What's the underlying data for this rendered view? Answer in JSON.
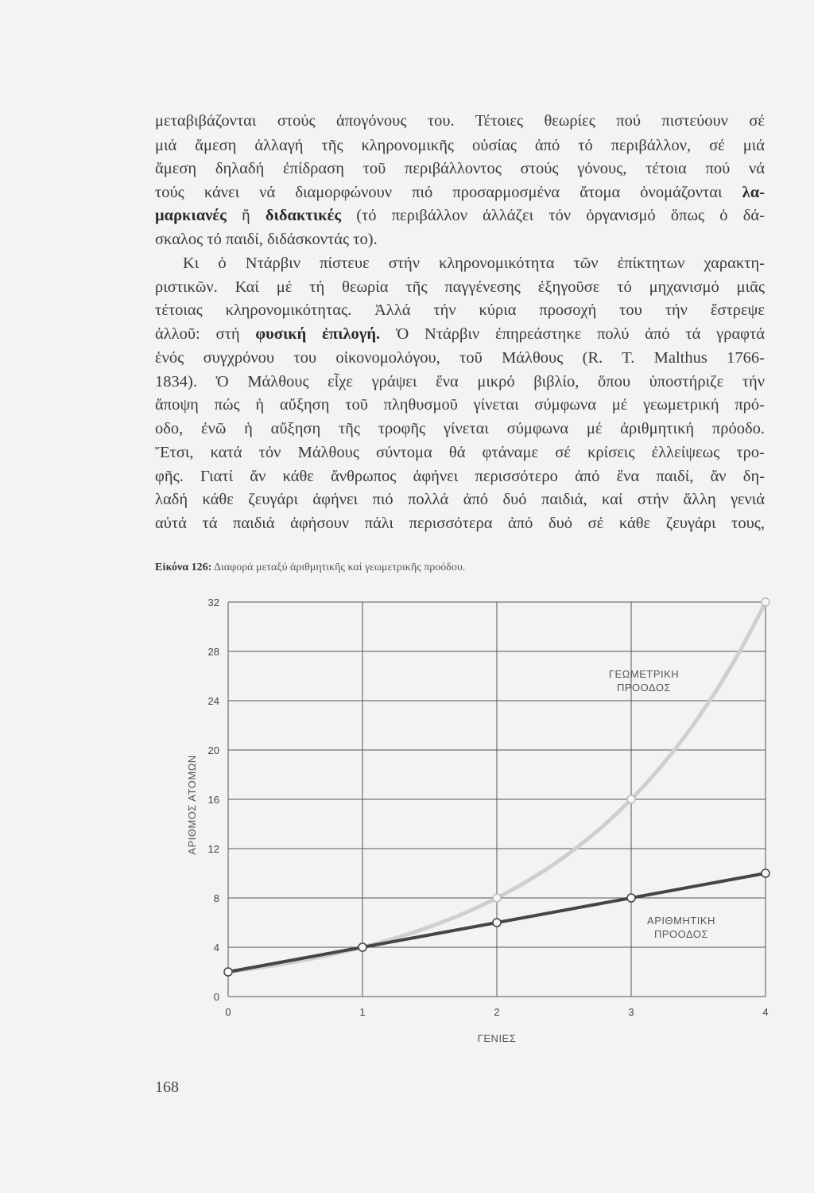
{
  "body_lines": [
    [
      {
        "t": "μεταβιβάζονται στούς ἀπογόνους του. Τέτοιες θεωρίες πού πιστεύουν σέ"
      }
    ],
    [
      {
        "t": "μιά ἄμεση ἀλλαγή τῆς κληρονομικῆς οὐσίας ἀπό τό περιβάλλον, σέ μιά"
      }
    ],
    [
      {
        "t": "ἄμεση δηλαδή ἐπίδραση τοῦ περιβάλλοντος στούς γόνους, τέτοια πού νά"
      }
    ],
    [
      {
        "t": "τούς κάνει νά διαμορφώνουν πιό προσαρμοσμένα ἄτομα ὀνομάζονται "
      },
      {
        "t": "λα-",
        "b": true
      }
    ],
    [
      {
        "t": "μαρκιανές",
        "b": true
      },
      {
        "t": " ἤ "
      },
      {
        "t": "διδακτικές",
        "b": true
      },
      {
        "t": " (τό περιβάλλον ἀλλάζει τόν ὀργανισμό ὅπως ὁ δά-"
      }
    ],
    [
      {
        "t": "σκαλος τό παιδί, διδάσκοντάς το)."
      }
    ],
    [
      {
        "t": "Κι ὁ Ντάρβιν πίστευε στήν κληρονομικότητα τῶν ἐπίκτητων χαρακτη-"
      }
    ],
    [
      {
        "t": "ριστικῶν. Καί μέ τή θεωρία τῆς παγγένεσης ἐξηγοῦσε τό μηχανισμό μιᾶς"
      }
    ],
    [
      {
        "t": "τέτοιας κληρονομικότητας. Ἀλλά τήν κύρια προσοχή του τήν ἔστρεψε"
      }
    ],
    [
      {
        "t": "ἀλλοῦ: στή "
      },
      {
        "t": "φυσική ἐπιλογή.",
        "b": true
      },
      {
        "t": " Ὁ Ντάρβιν ἐπηρεάστηκε πολύ ἀπό τά γραφτά"
      }
    ],
    [
      {
        "t": "ἑνός συγχρόνου του οἰκονομολόγου, τοῦ Μάλθους (R. T. Malthus 1766-"
      }
    ],
    [
      {
        "t": "1834). Ὁ Μάλθους εἶχε γράψει ἕνα μικρό βιβλίο, ὅπου ὑποστήριζε τήν"
      }
    ],
    [
      {
        "t": "ἄποψη πώς ἡ αὔξηση τοῦ πληθυσμοῦ γίνεται σύμφωνα μέ γεωμετρική πρό-"
      }
    ],
    [
      {
        "t": "οδο, ἐνῶ ἡ αὔξηση τῆς τροφῆς γίνεται σύμφωνα μέ ἀριθμητική πρόοδο."
      }
    ],
    [
      {
        "t": "Ἔτσι, κατά τόν Μάλθους σύντομα θά φτάναμε σέ κρίσεις ἐλλείψεως τρο-"
      }
    ],
    [
      {
        "t": "φῆς. Γιατί ἄν κάθε ἄνθρωπος ἀφήνει περισσότερο ἀπό ἕνα παιδί, ἄν δη-"
      }
    ],
    [
      {
        "t": "λαδή κάθε ζευγάρι ἀφήνει πιό πολλά ἀπό δυό παιδιά, καί στήν ἄλλη γενιά"
      }
    ],
    [
      {
        "t": "αὐτά τά παιδιά ἀφήσουν πάλι περισσότερα ἀπό δυό σέ κάθε ζευγάρι τους,"
      }
    ]
  ],
  "caption": {
    "label": "Εἰκόνα 126:",
    "text": " Διαφορά μεταξύ ἀριθμητικῆς καί γεωμετρικῆς προόδου."
  },
  "page_number": "168",
  "chart_data": {
    "type": "line",
    "x": [
      0,
      1,
      2,
      3,
      4
    ],
    "xlabel": "ΓΕΝΙΕΣ",
    "ylabel": "ΑΡΙΘΜΟΣ ΑΤΟΜΩΝ",
    "xlim": [
      0,
      4
    ],
    "ylim": [
      0,
      32
    ],
    "xticks": [
      "0",
      "1",
      "2",
      "3",
      "4"
    ],
    "yticks": [
      "0",
      "4",
      "8",
      "12",
      "16",
      "20",
      "24",
      "28",
      "32"
    ],
    "grid": true,
    "series": [
      {
        "name_lines": [
          "ΓΕΩΜΕΤΡΙΚΗ",
          "ΠΡΟΟΔΟΣ"
        ],
        "values": [
          2,
          4,
          8,
          16,
          32
        ],
        "color": "#cfcfcf"
      },
      {
        "name_lines": [
          "ΑΡΙΘΜΗΤΙΚΗ",
          "ΠΡΟΟΔΟΣ"
        ],
        "values": [
          2,
          4,
          6,
          8,
          10
        ],
        "color": "#454545"
      }
    ]
  }
}
